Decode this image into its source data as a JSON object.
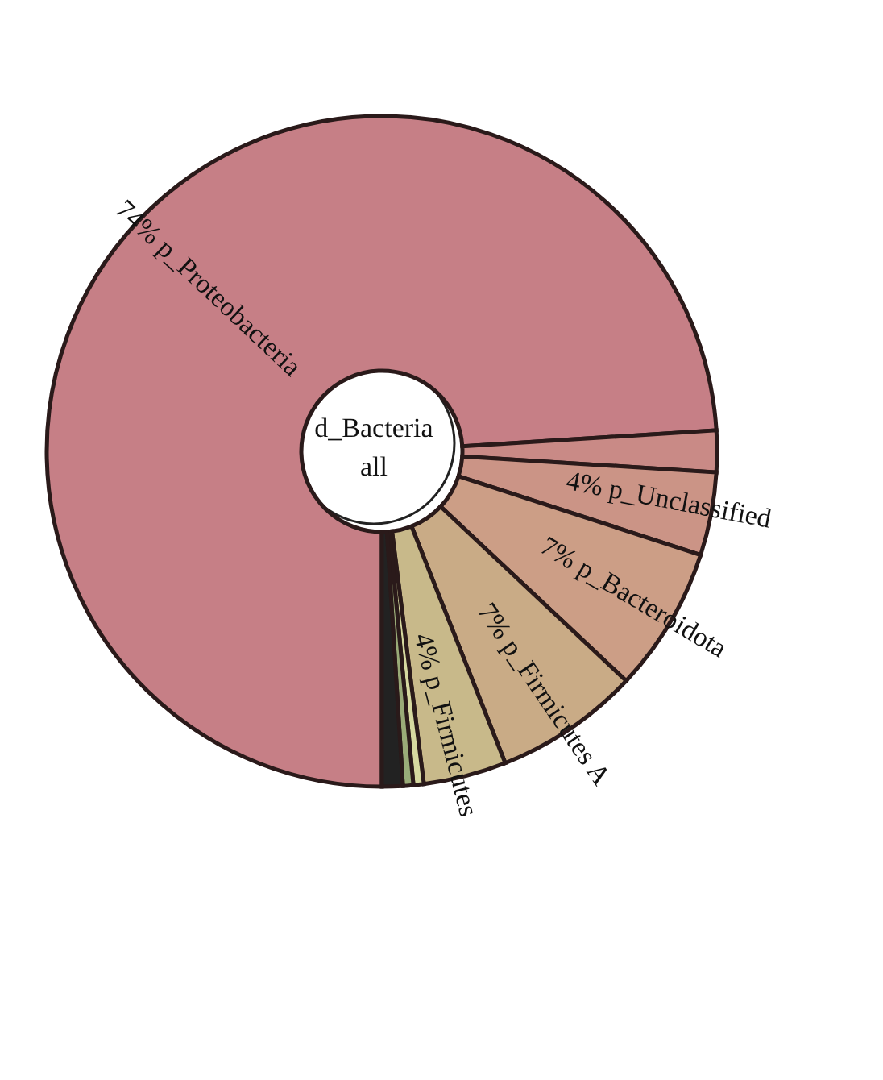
{
  "chart_data": {
    "type": "donut",
    "title": "d_Bacteria",
    "subtitle": "all",
    "categories": [
      "p_Proteobacteria",
      null,
      "p_Unclassified",
      "p_Bacteroidota",
      "p_Firmicutes A",
      "p_Firmicutes",
      null,
      null,
      null
    ],
    "values": [
      74,
      2,
      4,
      7,
      7,
      4,
      0.5,
      0.5,
      1
    ],
    "value_labels": [
      "74%",
      null,
      "4%",
      "7%",
      "7%",
      "4%",
      null,
      null,
      null
    ],
    "colors": [
      "#c67f86",
      "#c98a86",
      "#cb9486",
      "#cc9e86",
      "#c9ab86",
      "#c8b98a",
      "#d6d9a0",
      "#9aab78",
      "#222222"
    ]
  }
}
